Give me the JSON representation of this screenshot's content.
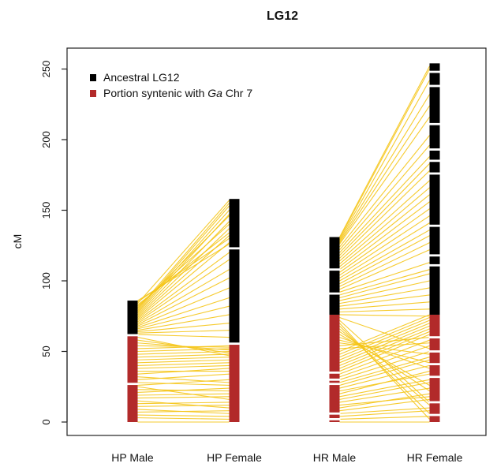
{
  "chart_data": {
    "type": "linkage_map_comparison",
    "title": "LG12",
    "ylabel": "cM",
    "xlabel": "",
    "ylim": [
      0,
      260
    ],
    "y_ticks": [
      0,
      50,
      100,
      150,
      200,
      250
    ],
    "grid": false,
    "legend_position": "top-left",
    "legend": [
      {
        "key": "ancestral",
        "label_pre": "Ancestral LG12",
        "label_italic": "",
        "label_post": "",
        "color": "#000000"
      },
      {
        "key": "syntenic",
        "label_pre": "Portion syntenic with ",
        "label_italic": "Ga",
        "label_post": " Chr 7",
        "color": "#b22a2a"
      }
    ],
    "link_color": "#f5c518",
    "maps": [
      {
        "name": "HP Male",
        "length": 86,
        "syntenic_end": 61,
        "gaps": [
          27,
          61.5
        ]
      },
      {
        "name": "HP Female",
        "length": 158,
        "syntenic_end": 55,
        "gaps": [
          55.5,
          123
        ]
      },
      {
        "name": "HR Male",
        "length": 131,
        "syntenic_end": 76,
        "gaps": [
          2,
          6,
          27,
          30,
          35,
          91,
          108
        ]
      },
      {
        "name": "HR Female",
        "length": 254,
        "syntenic_end": 76,
        "gaps": [
          5,
          14,
          32,
          41,
          50,
          60,
          111,
          118,
          139,
          176,
          185,
          193,
          211,
          238,
          248
        ]
      }
    ],
    "links": [
      {
        "from": 0,
        "to": 1,
        "pairs": [
          [
            0,
            0
          ],
          [
            3,
            2
          ],
          [
            5,
            4
          ],
          [
            7,
            8
          ],
          [
            9,
            6
          ],
          [
            11,
            12
          ],
          [
            13,
            14
          ],
          [
            15,
            10
          ],
          [
            17,
            18
          ],
          [
            19,
            20
          ],
          [
            21,
            24
          ],
          [
            23,
            22
          ],
          [
            25,
            16
          ],
          [
            26,
            30
          ],
          [
            28,
            26
          ],
          [
            30,
            34
          ],
          [
            32,
            28
          ],
          [
            34,
            38
          ],
          [
            36,
            36
          ],
          [
            38,
            40
          ],
          [
            40,
            42
          ],
          [
            42,
            44
          ],
          [
            44,
            46
          ],
          [
            46,
            48
          ],
          [
            48,
            50
          ],
          [
            50,
            52
          ],
          [
            52,
            54
          ],
          [
            54,
            53
          ],
          [
            56,
            51
          ],
          [
            58,
            49
          ],
          [
            60,
            47
          ],
          [
            62,
            60
          ],
          [
            63,
            65
          ],
          [
            64,
            70
          ],
          [
            65,
            76
          ],
          [
            66,
            82
          ],
          [
            67,
            88
          ],
          [
            68,
            95
          ],
          [
            69,
            102
          ],
          [
            70,
            108
          ],
          [
            71,
            115
          ],
          [
            72,
            120
          ],
          [
            73,
            127
          ],
          [
            74,
            132
          ],
          [
            75,
            137
          ],
          [
            76,
            142
          ],
          [
            77,
            147
          ],
          [
            78,
            150
          ],
          [
            79,
            153
          ],
          [
            80,
            155
          ],
          [
            81,
            146
          ],
          [
            82,
            140
          ],
          [
            83,
            134
          ],
          [
            84,
            157
          ],
          [
            85,
            130
          ],
          [
            86,
            126
          ]
        ]
      },
      {
        "from": 2,
        "to": 3,
        "pairs": [
          [
            0,
            0
          ],
          [
            2,
            4
          ],
          [
            4,
            8
          ],
          [
            6,
            10
          ],
          [
            8,
            16
          ],
          [
            10,
            20
          ],
          [
            12,
            18
          ],
          [
            14,
            24
          ],
          [
            16,
            28
          ],
          [
            18,
            30
          ],
          [
            20,
            36
          ],
          [
            22,
            34
          ],
          [
            24,
            40
          ],
          [
            26,
            44
          ],
          [
            28,
            46
          ],
          [
            30,
            50
          ],
          [
            32,
            54
          ],
          [
            34,
            58
          ],
          [
            36,
            62
          ],
          [
            38,
            64
          ],
          [
            40,
            66
          ],
          [
            42,
            68
          ],
          [
            44,
            70
          ],
          [
            46,
            72
          ],
          [
            48,
            74
          ],
          [
            50,
            76
          ],
          [
            52,
            56
          ],
          [
            54,
            60
          ],
          [
            56,
            48
          ],
          [
            58,
            42
          ],
          [
            60,
            38
          ],
          [
            62,
            26
          ],
          [
            64,
            22
          ],
          [
            66,
            12
          ],
          [
            68,
            6
          ],
          [
            70,
            2
          ],
          [
            72,
            14
          ],
          [
            74,
            52
          ],
          [
            76,
            75
          ],
          [
            78,
            80
          ],
          [
            80,
            85
          ],
          [
            82,
            90
          ],
          [
            84,
            95
          ],
          [
            86,
            100
          ],
          [
            88,
            105
          ],
          [
            90,
            108
          ],
          [
            92,
            113
          ],
          [
            94,
            122
          ],
          [
            96,
            127
          ],
          [
            98,
            132
          ],
          [
            100,
            136
          ],
          [
            102,
            141
          ],
          [
            104,
            146
          ],
          [
            106,
            151
          ],
          [
            108,
            156
          ],
          [
            110,
            161
          ],
          [
            112,
            166
          ],
          [
            114,
            171
          ],
          [
            116,
            178
          ],
          [
            118,
            183
          ],
          [
            120,
            188
          ],
          [
            122,
            196
          ],
          [
            124,
            203
          ],
          [
            126,
            216
          ],
          [
            127,
            224
          ],
          [
            128,
            232
          ],
          [
            129,
            242
          ],
          [
            130,
            250
          ],
          [
            131,
            252
          ]
        ]
      }
    ]
  }
}
